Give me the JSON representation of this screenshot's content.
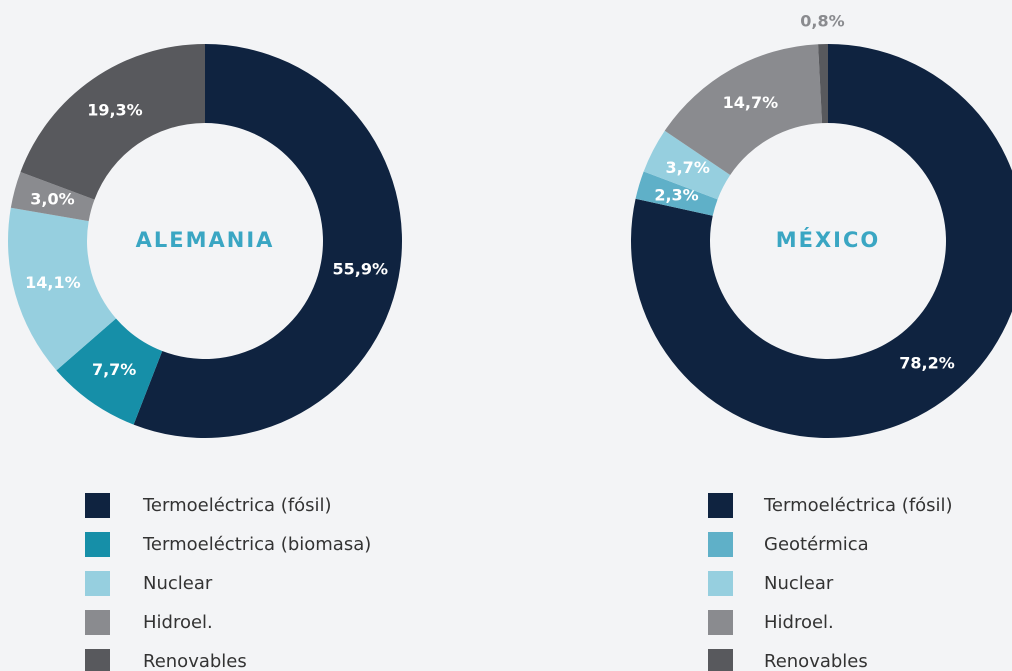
{
  "chart_data": [
    {
      "type": "pie",
      "title": "ALEMANIA",
      "categories": [
        "Termoeléctrica (fósil)",
        "Termoeléctrica (biomasa)",
        "Nuclear",
        "Hidroel.",
        "Renovables"
      ],
      "values": [
        55.9,
        7.7,
        14.1,
        3.0,
        19.3
      ],
      "value_labels": [
        "55,9%",
        "7,7%",
        "14,1%",
        "3,0%",
        "19,3%"
      ],
      "colors": [
        "#0f2340",
        "#168fa8",
        "#96cfdf",
        "#8a8b8f",
        "#58595d"
      ]
    },
    {
      "type": "pie",
      "title": "MÉXICO",
      "categories": [
        "Termoeléctrica (fósil)",
        "Geotérmica",
        "Nuclear",
        "Hidroel.",
        "Renovables"
      ],
      "values": [
        78.2,
        2.3,
        3.7,
        14.7,
        0.8
      ],
      "value_labels": [
        "78,2%",
        "2,3%",
        "3,7%",
        "14,7%",
        "0,8%"
      ],
      "colors": [
        "#0f2340",
        "#5fb0c8",
        "#96cfdf",
        "#8a8b8f",
        "#58595d"
      ]
    }
  ]
}
